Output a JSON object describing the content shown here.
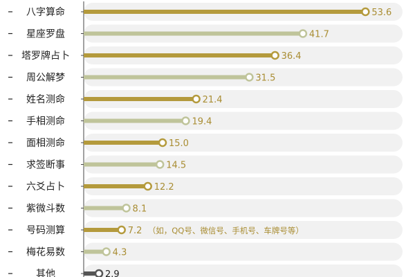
{
  "chart_data": {
    "type": "bar",
    "orientation": "horizontal",
    "categories": [
      "八字算命",
      "星座罗盘",
      "塔罗牌占卜",
      "周公解梦",
      "姓名测命",
      "手相测命",
      "面相测命",
      "求签断事",
      "六爻占卜",
      "紫微斗数",
      "号码测算",
      "梅花易数",
      "其他"
    ],
    "values": [
      53.6,
      41.7,
      36.4,
      31.5,
      21.4,
      19.4,
      15.0,
      14.5,
      12.2,
      8.1,
      7.2,
      4.3,
      2.9
    ],
    "value_labels": [
      "53.6",
      "41.7",
      "36.4",
      "31.5",
      "21.4",
      "19.4",
      "15.0",
      "14.5",
      "12.2",
      "8.1",
      "7.2",
      "4.3",
      "2.9"
    ],
    "annotations": [
      {
        "index": 10,
        "text": "（如，QQ号、微信号、手机号、车牌号等）"
      }
    ],
    "xlim": [
      0,
      60
    ],
    "grid": false,
    "legend": "none",
    "colors": {
      "primary": "#b49a3c",
      "secondary": "#bfc49a",
      "other": "#555555",
      "track": "#f1f1f1",
      "label": "#222222",
      "value_label": "#a98d33",
      "axis": "#444444"
    }
  }
}
